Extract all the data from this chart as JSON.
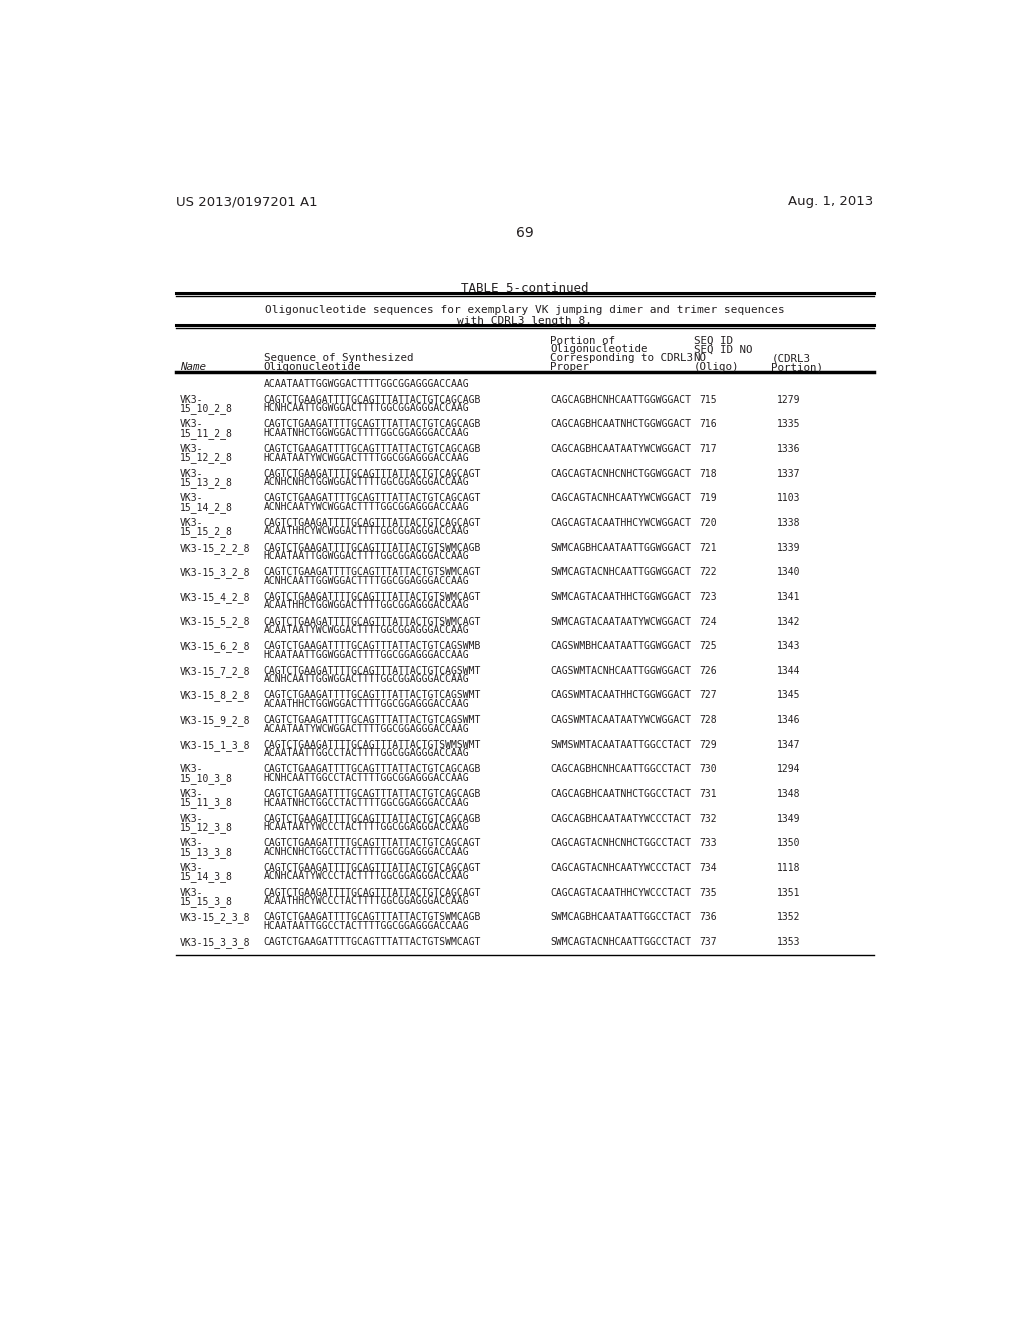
{
  "patent_left": "US 2013/0197201 A1",
  "patent_right": "Aug. 1, 2013",
  "page_number": "69",
  "table_title": "TABLE 5-continued",
  "table_subtitle1": "Oligonucleotide sequences for exemplary VK jumping dimer and trimer sequences",
  "table_subtitle2": "with CDRL3 length 8.",
  "rows": [
    {
      "name": "",
      "name2": "",
      "seq1": "ACAATAATTGGWGGACTTTTGGCGGAGGGACCAAG",
      "seq2": "",
      "cdrl3": "",
      "seqid": "",
      "seqid2": ""
    },
    {
      "name": "VK3-",
      "name2": "15_10_2_8",
      "seq1": "CAGTCTGAAGATTTTGCAGTTTATTACTGTCAGCAGB",
      "seq2": "HCNHCAATTGGWGGACTTTTGGCGGAGGGACCAAG",
      "cdrl3": "CAGCAGBHCNHCAATTGGWGGACT",
      "seqid": "715",
      "seqid2": "1279"
    },
    {
      "name": "VK3-",
      "name2": "15_11_2_8",
      "seq1": "CAGTCTGAAGATTTTGCAGTTTATTACTGTCAGCAGB",
      "seq2": "HCAATNHCTGGWGGACTTTTGGCGGAGGGACCAAG",
      "cdrl3": "CAGCAGBHCAATNHCTGGWGGACT",
      "seqid": "716",
      "seqid2": "1335"
    },
    {
      "name": "VK3-",
      "name2": "15_12_2_8",
      "seq1": "CAGTCTGAAGATTTTGCAGTTTATTACTGTCAGCAGB",
      "seq2": "HCAATAATYWCWGGACTTTTGGCGGAGGGACCAAG",
      "cdrl3": "CAGCAGBHCAATAATYWCWGGACT",
      "seqid": "717",
      "seqid2": "1336"
    },
    {
      "name": "VK3-",
      "name2": "15_13_2_8",
      "seq1": "CAGTCTGAAGATTTTGCAGTTTATTACTGTCAGCAGT",
      "seq2": "ACNHCNHCTGGWGGACTTTTGGCGGAGGGACCAAG",
      "cdrl3": "CAGCAGTACNHCNHCTGGWGGACT",
      "seqid": "718",
      "seqid2": "1337"
    },
    {
      "name": "VK3-",
      "name2": "15_14_2_8",
      "seq1": "CAGTCTGAAGATTTTGCAGTTTATTACTGTCAGCAGT",
      "seq2": "ACNHCAATYWCWGGACTTTTGGCGGAGGGACCAAG",
      "cdrl3": "CAGCAGTACNHCAATYWCWGGACT",
      "seqid": "719",
      "seqid2": "1103"
    },
    {
      "name": "VK3-",
      "name2": "15_15_2_8",
      "seq1": "CAGTCTGAAGATTTTGCAGTTTATTACTGTCAGCAGT",
      "seq2": "ACAATНHCYWCWGGACTTTTGGCGGAGGGACCAAG",
      "cdrl3": "CAGCAGTACAATНHCYWCWGGACT",
      "seqid": "720",
      "seqid2": "1338"
    },
    {
      "name": "VK3-15_2_2_8",
      "name2": "",
      "seq1": "CAGTCTGAAGATTTTGCAGTTTATTACTGTSWMCAGB",
      "seq2": "HCAATAATTGGWGGACTTTTGGCGGAGGGACCAAG",
      "cdrl3": "SWMCAGBHCAATAATTGGWGGACT",
      "seqid": "721",
      "seqid2": "1339"
    },
    {
      "name": "VK3-15_3_2_8",
      "name2": "",
      "seq1": "CAGTCTGAAGATTTTGCAGTTTATTACTGTSWMCAGT",
      "seq2": "ACNHCAATTGGWGGACTTTTGGCGGAGGGACCAAG",
      "cdrl3": "SWMCAGTACNHCAATTGGWGGACT",
      "seqid": "722",
      "seqid2": "1340"
    },
    {
      "name": "VK3-15_4_2_8",
      "name2": "",
      "seq1": "CAGTCTGAAGATTTTGCAGTTTATTACTGTSWMCAGT",
      "seq2": "ACAATНHCTGGWGGACTTTTGGCGGAGGGACCAAG",
      "cdrl3": "SWMCAGTACAATНHCTGGWGGACT",
      "seqid": "723",
      "seqid2": "1341"
    },
    {
      "name": "VK3-15_5_2_8",
      "name2": "",
      "seq1": "CAGTCTGAAGATTTTGCAGTTTATTACTGTSWMCAGT",
      "seq2": "ACAATAATYWCWGGACTTTTGGCGGAGGGACCAAG",
      "cdrl3": "SWMCAGTACAATAATYWCWGGACT",
      "seqid": "724",
      "seqid2": "1342"
    },
    {
      "name": "VK3-15_6_2_8",
      "name2": "",
      "seq1": "CAGTCTGAAGATTTTGCAGTTTATTACTGTCAGSWMB",
      "seq2": "HCAATAATTGGWGGACTTTTGGCGGAGGGACCAAG",
      "cdrl3": "CAGSWMBHCAATAATTGGWGGACT",
      "seqid": "725",
      "seqid2": "1343"
    },
    {
      "name": "VK3-15_7_2_8",
      "name2": "",
      "seq1": "CAGTCTGAAGATTTTGCAGTTTATTACTGTCAGSWMT",
      "seq2": "ACNHCAATTGGWGGACTTTTGGCGGAGGGACCAAG",
      "cdrl3": "CAGSWMTACNHCAATTGGWGGACT",
      "seqid": "726",
      "seqid2": "1344"
    },
    {
      "name": "VK3-15_8_2_8",
      "name2": "",
      "seq1": "CAGTCTGAAGATTTTGCAGTTTATTACTGTCAGSWMT",
      "seq2": "ACAATНHCTGGWGGACTTTTGGCGGAGGGACCAAG",
      "cdrl3": "CAGSWMTACAATНHCTGGWGGACT",
      "seqid": "727",
      "seqid2": "1345"
    },
    {
      "name": "VK3-15_9_2_8",
      "name2": "",
      "seq1": "CAGTCTGAAGATTTTGCAGTTTATTACTGTCAGSWMT",
      "seq2": "ACAATAATYWCWGGACTTTTGGCGGAGGGACCAAG",
      "cdrl3": "CAGSWMTACAATAATYWCWGGACT",
      "seqid": "728",
      "seqid2": "1346"
    },
    {
      "name": "VK3-15_1_3_8",
      "name2": "",
      "seq1": "CAGTCTGAAGATTTTGCAGTTTATTACTGTSWMSWMT",
      "seq2": "ACAATAATTGGCCTACTTTTGGCGGAGGGACCAAG",
      "cdrl3": "SWMSWMTACAATAATTGGCCTACT",
      "seqid": "729",
      "seqid2": "1347"
    },
    {
      "name": "VK3-",
      "name2": "15_10_3_8",
      "seq1": "CAGTCTGAAGATTTTGCAGTTTATTACTGTCAGCAGB",
      "seq2": "HCNHCAATTGGCCTACTTTTGGCGGAGGGACCAAG",
      "cdrl3": "CAGCAGBHCNHCAATTGGCCTACT",
      "seqid": "730",
      "seqid2": "1294"
    },
    {
      "name": "VK3-",
      "name2": "15_11_3_8",
      "seq1": "CAGTCTGAAGATTTTGCAGTTTATTACTGTCAGCAGB",
      "seq2": "HCAATNHCTGGCCTACTTTTGGCGGAGGGACCAAG",
      "cdrl3": "CAGCAGBHCAATNHCTGGCCTACT",
      "seqid": "731",
      "seqid2": "1348"
    },
    {
      "name": "VK3-",
      "name2": "15_12_3_8",
      "seq1": "CAGTCTGAAGATTTTGCAGTTTATTACTGTCAGCAGB",
      "seq2": "HCAATAATYWCCCTACTTTTGGCGGAGGGACCAAG",
      "cdrl3": "CAGCAGBHCAATAATYWCCCTACT",
      "seqid": "732",
      "seqid2": "1349"
    },
    {
      "name": "VK3-",
      "name2": "15_13_3_8",
      "seq1": "CAGTCTGAAGATTTTGCAGTTTATTACTGTCAGCAGT",
      "seq2": "ACNHCNHCTGGCCTACTTTTGGCGGAGGGACCAAG",
      "cdrl3": "CAGCAGTACNHCNHCTGGCCTACT",
      "seqid": "733",
      "seqid2": "1350"
    },
    {
      "name": "VK3-",
      "name2": "15_14_3_8",
      "seq1": "CAGTCTGAAGATTTTGCAGTTTATTACTGTCAGCAGT",
      "seq2": "ACNHCAATYWCCCTACTTTTGGCGGAGGGACCAAG",
      "cdrl3": "CAGCAGTACNHCAATYWCCCTACT",
      "seqid": "734",
      "seqid2": "1118"
    },
    {
      "name": "VK3-",
      "name2": "15_15_3_8",
      "seq1": "CAGTCTGAAGATTTTGCAGTTTATTACTGTCAGCAGT",
      "seq2": "ACAATНHCYWCCCTACTTTTGGCGGAGGGACCAAG",
      "cdrl3": "CAGCAGTACAATНHCYWCCCTACT",
      "seqid": "735",
      "seqid2": "1351"
    },
    {
      "name": "VK3-15_2_3_8",
      "name2": "",
      "seq1": "CAGTCTGAAGATTTTGCAGTTTATTACTGTSWMCAGB",
      "seq2": "HCAATAATTGGCCTACTTTTGGCGGAGGGACCAAG",
      "cdrl3": "SWMCAGBHCAATAATTGGCCTACT",
      "seqid": "736",
      "seqid2": "1352"
    },
    {
      "name": "VK3-15_3_3_8",
      "name2": "",
      "seq1": "CAGTCTGAAGATTTTGCAGTTTATTACTGTSWMCAGT",
      "seq2": "",
      "cdrl3": "SWMCAGTACNHCAATTGGCCTACT",
      "seqid": "737",
      "seqid2": "1353"
    }
  ],
  "bg_color": "#ffffff",
  "text_color": "#231f20"
}
